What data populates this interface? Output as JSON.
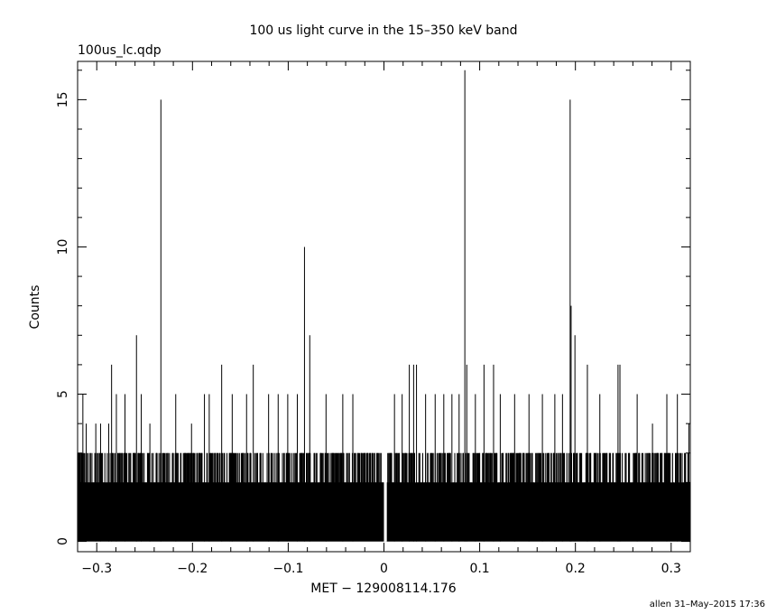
{
  "chart_data": {
    "type": "line",
    "title": "100 us light curve in the 15–350 keV band",
    "file_label": "100us_lc.qdp",
    "xlabel": "MET − 129008114.176",
    "ylabel": "Counts",
    "footer": "allen 31–May–2015 17:36",
    "xlim": [
      -0.32,
      0.32
    ],
    "ylim": [
      -0.35,
      16.3
    ],
    "xticks_major": [
      {
        "value": -0.3,
        "label": "−0.3"
      },
      {
        "value": -0.2,
        "label": "−0.2"
      },
      {
        "value": -0.1,
        "label": "−0.1"
      },
      {
        "value": 0,
        "label": "0"
      },
      {
        "value": 0.1,
        "label": "0.1"
      },
      {
        "value": 0.2,
        "label": "0.2"
      },
      {
        "value": 0.3,
        "label": "0.3"
      }
    ],
    "yticks_major": [
      {
        "value": 0,
        "label": "0"
      },
      {
        "value": 5,
        "label": "5"
      },
      {
        "value": 10,
        "label": "10"
      },
      {
        "value": 15,
        "label": "15"
      }
    ],
    "bin_width": 0.0001,
    "series": [
      {
        "style": "histogram",
        "baseline_counts_range": [
          0,
          3
        ],
        "gap": [
          0.0,
          0.003
        ],
        "spikes": [
          {
            "x": -0.3145,
            "y": 5
          },
          {
            "x": -0.311,
            "y": 4
          },
          {
            "x": -0.301,
            "y": 4
          },
          {
            "x": -0.296,
            "y": 4
          },
          {
            "x": -0.2875,
            "y": 4
          },
          {
            "x": -0.2845,
            "y": 6
          },
          {
            "x": -0.2795,
            "y": 5
          },
          {
            "x": -0.2705,
            "y": 5
          },
          {
            "x": -0.2585,
            "y": 7
          },
          {
            "x": -0.2535,
            "y": 5
          },
          {
            "x": -0.2445,
            "y": 4
          },
          {
            "x": -0.233,
            "y": 15
          },
          {
            "x": -0.2175,
            "y": 5
          },
          {
            "x": -0.201,
            "y": 4
          },
          {
            "x": -0.1875,
            "y": 5
          },
          {
            "x": -0.1825,
            "y": 5
          },
          {
            "x": -0.1695,
            "y": 6
          },
          {
            "x": -0.1585,
            "y": 5
          },
          {
            "x": -0.1435,
            "y": 5
          },
          {
            "x": -0.1365,
            "y": 6
          },
          {
            "x": -0.1205,
            "y": 5
          },
          {
            "x": -0.1105,
            "y": 5
          },
          {
            "x": -0.1005,
            "y": 5
          },
          {
            "x": -0.0905,
            "y": 5
          },
          {
            "x": -0.083,
            "y": 10
          },
          {
            "x": -0.0775,
            "y": 7
          },
          {
            "x": -0.0605,
            "y": 5
          },
          {
            "x": -0.043,
            "y": 5
          },
          {
            "x": -0.0325,
            "y": 5
          },
          {
            "x": 0.011,
            "y": 5
          },
          {
            "x": 0.019,
            "y": 5
          },
          {
            "x": 0.0265,
            "y": 6
          },
          {
            "x": 0.031,
            "y": 6
          },
          {
            "x": 0.034,
            "y": 6
          },
          {
            "x": 0.0435,
            "y": 5
          },
          {
            "x": 0.0535,
            "y": 5
          },
          {
            "x": 0.0625,
            "y": 5
          },
          {
            "x": 0.071,
            "y": 5
          },
          {
            "x": 0.0785,
            "y": 5
          },
          {
            "x": 0.0845,
            "y": 16
          },
          {
            "x": 0.0865,
            "y": 6
          },
          {
            "x": 0.0955,
            "y": 5
          },
          {
            "x": 0.1045,
            "y": 6
          },
          {
            "x": 0.1145,
            "y": 6
          },
          {
            "x": 0.1215,
            "y": 5
          },
          {
            "x": 0.1365,
            "y": 5
          },
          {
            "x": 0.1515,
            "y": 5
          },
          {
            "x": 0.1655,
            "y": 5
          },
          {
            "x": 0.1785,
            "y": 5
          },
          {
            "x": 0.1865,
            "y": 5
          },
          {
            "x": 0.1945,
            "y": 15
          },
          {
            "x": 0.1955,
            "y": 8
          },
          {
            "x": 0.1995,
            "y": 7
          },
          {
            "x": 0.2125,
            "y": 6
          },
          {
            "x": 0.2255,
            "y": 5
          },
          {
            "x": 0.2445,
            "y": 6
          },
          {
            "x": 0.2465,
            "y": 6
          },
          {
            "x": 0.2645,
            "y": 5
          },
          {
            "x": 0.2805,
            "y": 4
          },
          {
            "x": 0.2955,
            "y": 5
          },
          {
            "x": 0.3065,
            "y": 5
          },
          {
            "x": 0.3185,
            "y": 4
          }
        ]
      }
    ]
  }
}
